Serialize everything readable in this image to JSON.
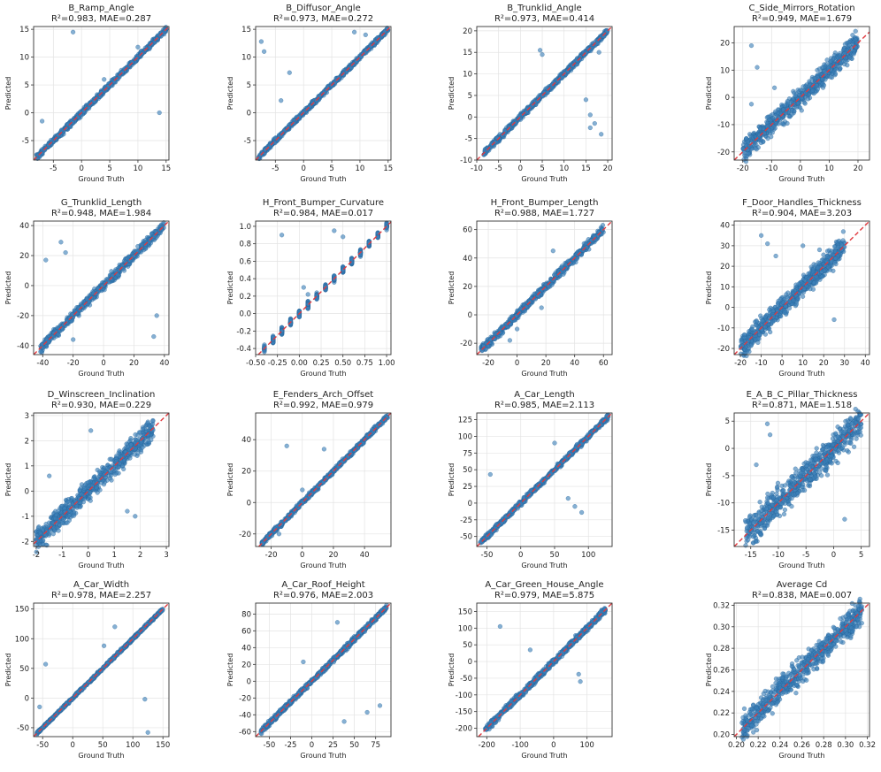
{
  "figure": {
    "xlabel": "Ground Truth",
    "ylabel": "Predicted",
    "colors": {
      "points": "#3b7fb8",
      "reference_line": "#e0393e",
      "grid": "#e3e3e3"
    }
  },
  "chart_data": [
    {
      "type": "scatter",
      "title": "B_Ramp_Angle",
      "subtitle": "R²=0.983, MAE=0.287",
      "xlim": [
        -8.5,
        15.5
      ],
      "ylim": [
        -8.5,
        15.5
      ],
      "xticks": [
        -5,
        0,
        5,
        10,
        15
      ],
      "yticks": [
        -5,
        0,
        5,
        10,
        15
      ],
      "range": [
        -8,
        15
      ],
      "noise": 0.35,
      "outliers": [
        [
          -7,
          -1.5
        ],
        [
          -1.5,
          14.5
        ],
        [
          13.8,
          0
        ],
        [
          4,
          6
        ],
        [
          10,
          11.8
        ]
      ]
    },
    {
      "type": "scatter",
      "title": "B_Diffusor_Angle",
      "subtitle": "R²=0.973, MAE=0.272",
      "xlim": [
        -8.5,
        15.5
      ],
      "ylim": [
        -8.5,
        15.5
      ],
      "xticks": [
        -5,
        0,
        5,
        10,
        15
      ],
      "yticks": [
        -5,
        0,
        5,
        10,
        15
      ],
      "range": [
        -8,
        15
      ],
      "noise": 0.3,
      "outliers": [
        [
          -7.5,
          12.8
        ],
        [
          -7,
          11
        ],
        [
          -2.5,
          7.2
        ],
        [
          -4,
          2.2
        ],
        [
          9,
          14.5
        ],
        [
          11,
          14
        ]
      ]
    },
    {
      "type": "scatter",
      "title": "B_Trunklid_Angle",
      "subtitle": "R²=0.973, MAE=0.414",
      "xlim": [
        -10,
        21
      ],
      "ylim": [
        -10,
        21
      ],
      "xticks": [
        -10,
        -5,
        0,
        5,
        10,
        15,
        20
      ],
      "yticks": [
        -10,
        -5,
        0,
        5,
        10,
        15,
        20
      ],
      "range": [
        -8.5,
        20
      ],
      "noise": 0.45,
      "outliers": [
        [
          5,
          14.5
        ],
        [
          15,
          4
        ],
        [
          16,
          0.5
        ],
        [
          17,
          -1.5
        ],
        [
          16,
          -2.5
        ],
        [
          18.5,
          -4
        ],
        [
          4.5,
          15.5
        ],
        [
          18,
          15
        ]
      ]
    },
    {
      "type": "scatter",
      "title": "C_Side_Mirrors_Rotation",
      "subtitle": "R²=0.949, MAE=1.679",
      "xlim": [
        -23,
        24
      ],
      "ylim": [
        -23,
        26
      ],
      "xticks": [
        -20,
        -10,
        0,
        10,
        20
      ],
      "yticks": [
        -20,
        -10,
        0,
        10,
        20
      ],
      "range": [
        -20,
        20
      ],
      "noise": 2.6,
      "outliers": [
        [
          -17,
          19
        ],
        [
          -15,
          11
        ],
        [
          -17,
          -2.5
        ],
        [
          -9,
          3.5
        ],
        [
          6,
          3
        ]
      ]
    },
    {
      "type": "scatter",
      "title": "G_Trunklid_Length",
      "subtitle": "R²=0.948, MAE=1.984",
      "xlim": [
        -46,
        43
      ],
      "ylim": [
        -46,
        43
      ],
      "xticks": [
        -40,
        -20,
        0,
        20,
        40
      ],
      "yticks": [
        -40,
        -20,
        0,
        20,
        40
      ],
      "range": [
        -42,
        40
      ],
      "noise": 2.2,
      "outliers": [
        [
          -38,
          17
        ],
        [
          -28,
          29
        ],
        [
          -25,
          22
        ],
        [
          35,
          -20
        ],
        [
          33,
          -34
        ],
        [
          -20,
          -36
        ]
      ]
    },
    {
      "type": "scatter",
      "title": "H_Front_Bumper_Curvature",
      "subtitle": "R²=0.984, MAE=0.017",
      "xlim": [
        -0.5,
        1.05
      ],
      "ylim": [
        -0.47,
        1.06
      ],
      "xticks": [
        -0.5,
        -0.25,
        0.0,
        0.25,
        0.5,
        0.75,
        1.0
      ],
      "yticks": [
        -0.4,
        -0.2,
        0.0,
        0.2,
        0.4,
        0.6,
        0.8,
        1.0
      ],
      "tickdec": 2,
      "ytickdec": 1,
      "range": [
        -0.4,
        1.0
      ],
      "noise": 0.025,
      "discrete": 15,
      "outliers": [
        [
          -0.2,
          0.9
        ],
        [
          0.05,
          0.3
        ],
        [
          0.1,
          0.22
        ],
        [
          0.5,
          0.88
        ],
        [
          0.4,
          0.95
        ]
      ]
    },
    {
      "type": "scatter",
      "title": "H_Front_Bumper_Length",
      "subtitle": "R²=0.988, MAE=1.727",
      "xlim": [
        -28,
        66
      ],
      "ylim": [
        -28,
        66
      ],
      "xticks": [
        -20,
        0,
        20,
        40,
        60
      ],
      "yticks": [
        -20,
        0,
        20,
        40,
        60
      ],
      "range": [
        -25,
        60
      ],
      "noise": 2.0,
      "outliers": [
        [
          25,
          45
        ],
        [
          0,
          -10
        ],
        [
          17,
          5
        ],
        [
          -5,
          -18
        ]
      ]
    },
    {
      "type": "scatter",
      "title": "F_Door_Handles_Thickness",
      "subtitle": "R²=0.904, MAE=3.203",
      "xlim": [
        -23,
        42
      ],
      "ylim": [
        -23,
        42
      ],
      "xticks": [
        -20,
        -10,
        0,
        10,
        20,
        30,
        40
      ],
      "yticks": [
        -20,
        -10,
        0,
        10,
        20,
        30,
        40
      ],
      "range": [
        -20,
        30
      ],
      "noise": 3.6,
      "outliers": [
        [
          -10,
          35
        ],
        [
          -7,
          31
        ],
        [
          -3,
          25
        ],
        [
          10,
          30
        ],
        [
          18,
          28
        ],
        [
          25,
          -6
        ]
      ]
    },
    {
      "type": "scatter",
      "title": "D_Winscreen_Inclination",
      "subtitle": "R²=0.930, MAE=0.229",
      "xlim": [
        -2.1,
        3.1
      ],
      "ylim": [
        -2.2,
        3.1
      ],
      "xticks": [
        -2,
        -1,
        0,
        1,
        2,
        3
      ],
      "yticks": [
        -2,
        -1,
        0,
        1,
        2,
        3
      ],
      "range": [
        -2,
        2.5
      ],
      "noise": 0.3,
      "outliers": [
        [
          1.5,
          -0.8
        ],
        [
          1.8,
          -1.0
        ],
        [
          -1.5,
          0.6
        ],
        [
          0.1,
          2.4
        ]
      ]
    },
    {
      "type": "scatter",
      "title": "E_Fenders_Arch_Offset",
      "subtitle": "R²=0.992, MAE=0.979",
      "xlim": [
        -30,
        57
      ],
      "ylim": [
        -28,
        57
      ],
      "xticks": [
        -20,
        0,
        20,
        40
      ],
      "yticks": [
        -20,
        0,
        20,
        40
      ],
      "range": [
        -26,
        55
      ],
      "noise": 1.0,
      "outliers": [
        [
          -10,
          36
        ],
        [
          14,
          34
        ],
        [
          -15,
          -20
        ],
        [
          0,
          8
        ]
      ]
    },
    {
      "type": "scatter",
      "title": "A_Car_Length",
      "subtitle": "R²=0.985, MAE=2.113",
      "xlim": [
        -65,
        135
      ],
      "ylim": [
        -65,
        135
      ],
      "xticks": [
        -50,
        0,
        50,
        100
      ],
      "yticks": [
        -50,
        -25,
        0,
        25,
        50,
        75,
        100,
        125
      ],
      "range": [
        -60,
        130
      ],
      "noise": 2.5,
      "outliers": [
        [
          -45,
          43
        ],
        [
          50,
          90
        ],
        [
          63,
          62
        ],
        [
          70,
          7
        ],
        [
          90,
          -14
        ],
        [
          80,
          -5
        ]
      ]
    },
    {
      "type": "scatter",
      "title": "E_A_B_C_Pillar_Thickness",
      "subtitle": "R²=0.871, MAE=1.518",
      "xlim": [
        -18,
        6.5
      ],
      "ylim": [
        -18,
        6.5
      ],
      "xticks": [
        -15,
        -10,
        -5,
        0,
        5
      ],
      "yticks": [
        -15,
        -10,
        -5,
        0,
        5
      ],
      "range": [
        -16,
        5
      ],
      "noise": 2.0,
      "outliers": [
        [
          -12,
          4.5
        ],
        [
          -11.5,
          2.5
        ],
        [
          -14,
          -3
        ],
        [
          2,
          -13
        ]
      ]
    },
    {
      "type": "scatter",
      "title": "A_Car_Width",
      "subtitle": "R²=0.978, MAE=2.257",
      "xlim": [
        -65,
        160
      ],
      "ylim": [
        -65,
        160
      ],
      "xticks": [
        -50,
        0,
        50,
        100,
        150
      ],
      "yticks": [
        -50,
        0,
        50,
        100,
        150
      ],
      "range": [
        -60,
        150
      ],
      "noise": 1.5,
      "outliers": [
        [
          -45,
          57
        ],
        [
          52,
          88
        ],
        [
          -55,
          -15
        ],
        [
          120,
          -2
        ],
        [
          125,
          -58
        ],
        [
          70,
          120
        ]
      ]
    },
    {
      "type": "scatter",
      "title": "A_Car_Roof_Height",
      "subtitle": "R²=0.976, MAE=2.003",
      "xlim": [
        -66,
        93
      ],
      "ylim": [
        -66,
        93
      ],
      "xticks": [
        -50,
        -25,
        0,
        25,
        50,
        75
      ],
      "yticks": [
        -60,
        -40,
        -20,
        0,
        20,
        40,
        60,
        80
      ],
      "range": [
        -60,
        88
      ],
      "noise": 2.0,
      "outliers": [
        [
          -10,
          23
        ],
        [
          30,
          70
        ],
        [
          80,
          -29
        ],
        [
          65,
          -37
        ],
        [
          38,
          -48
        ]
      ]
    },
    {
      "type": "scatter",
      "title": "A_Car_Green_House_Angle",
      "subtitle": "R²=0.979, MAE=5.875",
      "xlim": [
        -230,
        175
      ],
      "ylim": [
        -225,
        175
      ],
      "xticks": [
        -200,
        -100,
        0,
        100
      ],
      "yticks": [
        -200,
        -150,
        -100,
        -50,
        0,
        50,
        100,
        150
      ],
      "range": [
        -205,
        155
      ],
      "noise": 6.5,
      "outliers": [
        [
          -160,
          105
        ],
        [
          -70,
          35
        ],
        [
          75,
          -38
        ],
        [
          80,
          -60
        ],
        [
          -165,
          -175
        ]
      ]
    },
    {
      "type": "scatter",
      "title": "Average Cd",
      "subtitle": "R²=0.838, MAE=0.007",
      "xlim": [
        0.198,
        0.322
      ],
      "ylim": [
        0.198,
        0.322
      ],
      "xticks": [
        0.2,
        0.22,
        0.24,
        0.26,
        0.28,
        0.3,
        0.32
      ],
      "yticks": [
        0.2,
        0.22,
        0.24,
        0.26,
        0.28,
        0.3,
        0.32
      ],
      "tickdec": 2,
      "ytickdec": 2,
      "range": [
        0.205,
        0.315
      ],
      "noise": 0.0085,
      "outliers": [
        [
          0.21,
          0.213
        ],
        [
          0.31,
          0.3
        ]
      ]
    }
  ]
}
